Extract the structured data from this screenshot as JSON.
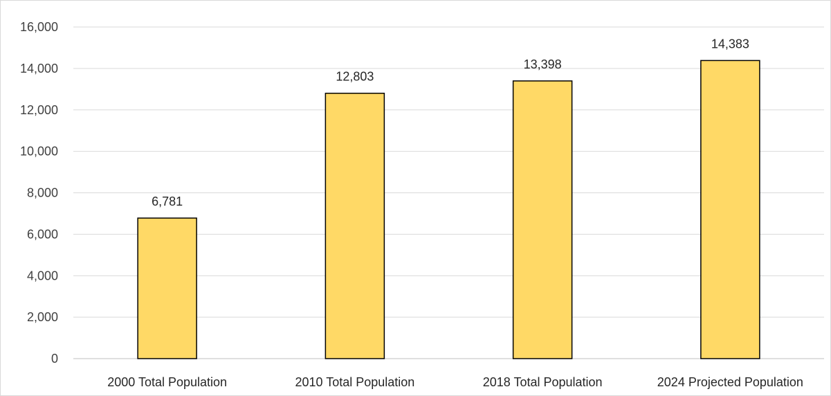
{
  "chart_data": {
    "type": "bar",
    "title": "",
    "xlabel": "",
    "ylabel": "",
    "categories": [
      "2000 Total Population",
      "2010 Total Population",
      "2018 Total Population",
      "2024 Projected Population"
    ],
    "values": [
      6781,
      12803,
      13398,
      14383
    ],
    "data_labels": [
      "6,781",
      "12,803",
      "13,398",
      "14,383"
    ],
    "ylim": [
      0,
      16000
    ],
    "yticks": [
      0,
      2000,
      4000,
      6000,
      8000,
      10000,
      12000,
      14000,
      16000
    ],
    "ytick_labels": [
      "0",
      "2,000",
      "4,000",
      "6,000",
      "8,000",
      "10,000",
      "12,000",
      "14,000",
      "16,000"
    ],
    "grid": true,
    "legend": "none",
    "colors": {
      "bar_fill": "#FFD966",
      "bar_stroke": "#000000",
      "gridline": "#d9d9d9",
      "axis_line": "#bfbfbf"
    }
  }
}
